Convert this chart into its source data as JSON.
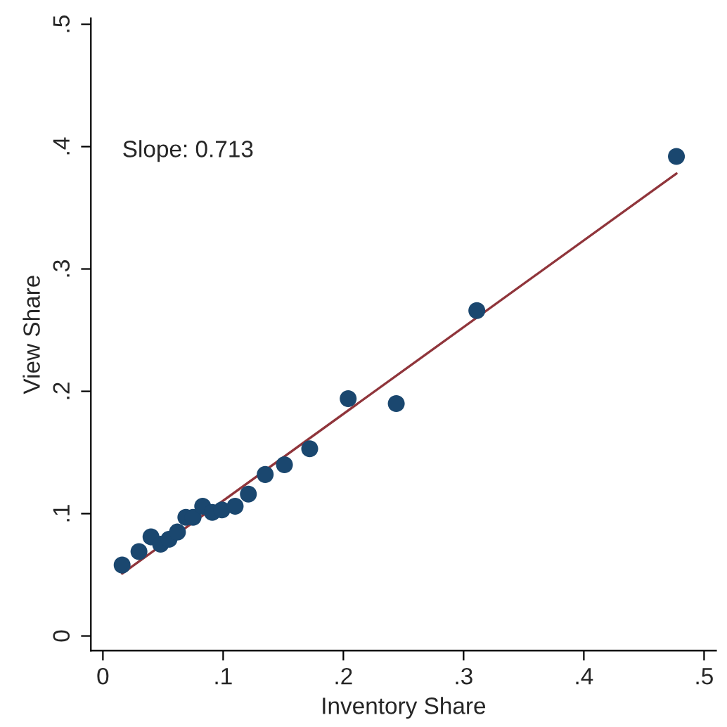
{
  "chart_data": {
    "type": "scatter",
    "xlabel": "Inventory Share",
    "ylabel": "View Share",
    "annotations": [
      "Slope: 0.713"
    ],
    "xlim": [
      -0.01,
      0.51
    ],
    "ylim": [
      -0.012,
      0.505
    ],
    "xticks": [
      0,
      {
        "value": 0.1,
        "label": ".1"
      },
      {
        "value": 0.2,
        "label": ".2"
      },
      {
        "value": 0.3,
        "label": ".3"
      },
      {
        "value": 0.4,
        "label": ".4"
      },
      {
        "value": 0.5,
        "label": ".5"
      }
    ],
    "yticks": [
      0,
      {
        "value": 0.1,
        "label": ".1"
      },
      {
        "value": 0.2,
        "label": ".2"
      },
      {
        "value": 0.3,
        "label": ".3"
      },
      {
        "value": 0.4,
        "label": ".4"
      },
      {
        "value": 0.5,
        "label": ".5"
      }
    ],
    "grid": false,
    "legend": false,
    "series": [
      {
        "marker": "circle",
        "color": "#1a476f",
        "x": [
          0.016,
          0.03,
          0.04,
          0.048,
          0.055,
          0.062,
          0.069,
          0.075,
          0.083,
          0.091,
          0.099,
          0.11,
          0.121,
          0.135,
          0.151,
          0.172,
          0.204,
          0.244,
          0.311,
          0.477
        ],
        "values": [
          0.058,
          0.069,
          0.081,
          0.075,
          0.079,
          0.085,
          0.097,
          0.097,
          0.106,
          0.101,
          0.103,
          0.106,
          0.116,
          0.132,
          0.14,
          0.153,
          0.194,
          0.19,
          0.266,
          0.392
        ]
      },
      {
        "type": "line",
        "marker": "none",
        "color": "#90353b",
        "x": [
          0.016,
          0.477
        ],
        "values": [
          0.051,
          0.378
        ]
      }
    ]
  }
}
